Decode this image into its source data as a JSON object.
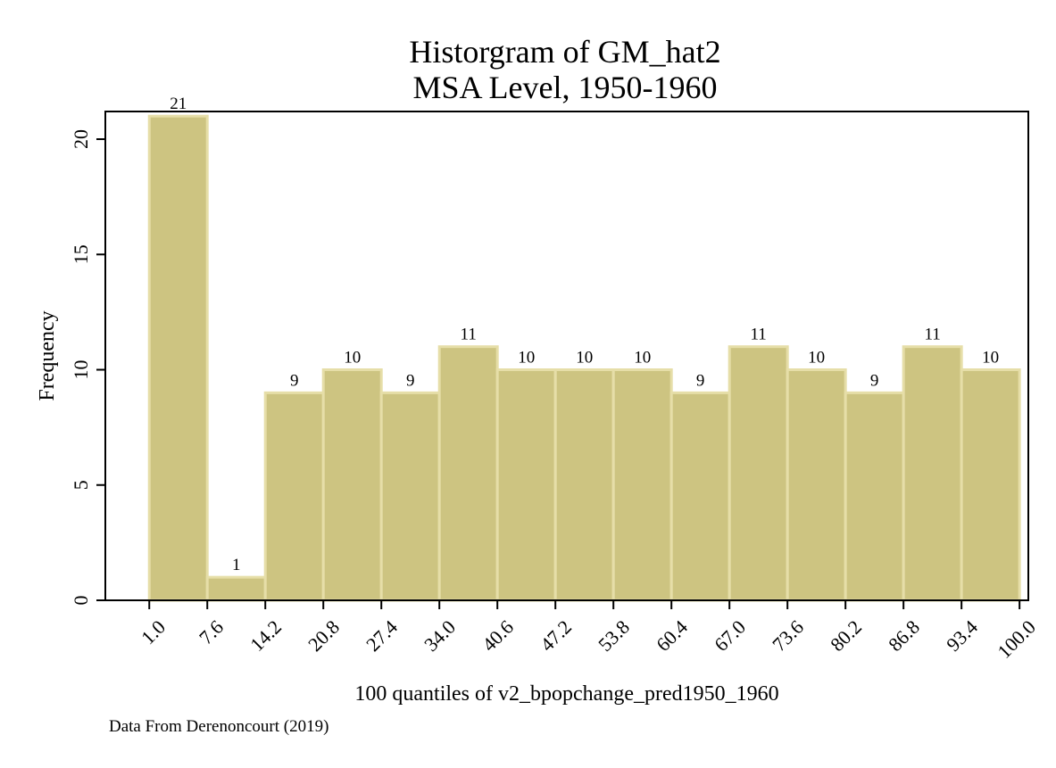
{
  "chart_data": {
    "type": "bar",
    "title": "Historgram of GM_hat2",
    "subtitle": "MSA Level, 1950-1960",
    "xlabel": "100 quantiles of v2_bpopchange_pred1950_1960",
    "ylabel": "Frequency",
    "note": "Data From Derenoncourt (2019)",
    "x_ticks": [
      "1.0",
      "7.6",
      "14.2",
      "20.8",
      "27.4",
      "34.0",
      "40.6",
      "47.2",
      "53.8",
      "60.4",
      "67.0",
      "73.6",
      "80.2",
      "86.8",
      "93.4",
      "100.0"
    ],
    "x_tick_values": [
      1.0,
      7.6,
      14.2,
      20.8,
      27.4,
      34.0,
      40.6,
      47.2,
      53.8,
      60.4,
      67.0,
      73.6,
      80.2,
      86.8,
      93.4,
      100.0
    ],
    "bin_edges": [
      1.0,
      7.6,
      14.2,
      20.8,
      27.4,
      34.0,
      40.6,
      47.2,
      53.8,
      60.4,
      67.0,
      73.6,
      80.2,
      86.8,
      93.4,
      100.0
    ],
    "values": [
      21,
      1,
      9,
      10,
      9,
      11,
      10,
      10,
      10,
      9,
      11,
      10,
      9,
      11,
      10
    ],
    "data_labels": [
      "21",
      "1",
      "9",
      "10",
      "9",
      "11",
      "10",
      "10",
      "10",
      "9",
      "11",
      "10",
      "9",
      "11",
      "10"
    ],
    "y_ticks": [
      "0",
      "5",
      "10",
      "15",
      "20"
    ],
    "y_tick_values": [
      0,
      5,
      10,
      15,
      20
    ],
    "xlim": [
      -4.0,
      101.0
    ],
    "ylim": [
      0,
      21.2
    ],
    "grid": false,
    "bar_color": "#cdc481",
    "bar_edge_color": "#e6dea8"
  }
}
